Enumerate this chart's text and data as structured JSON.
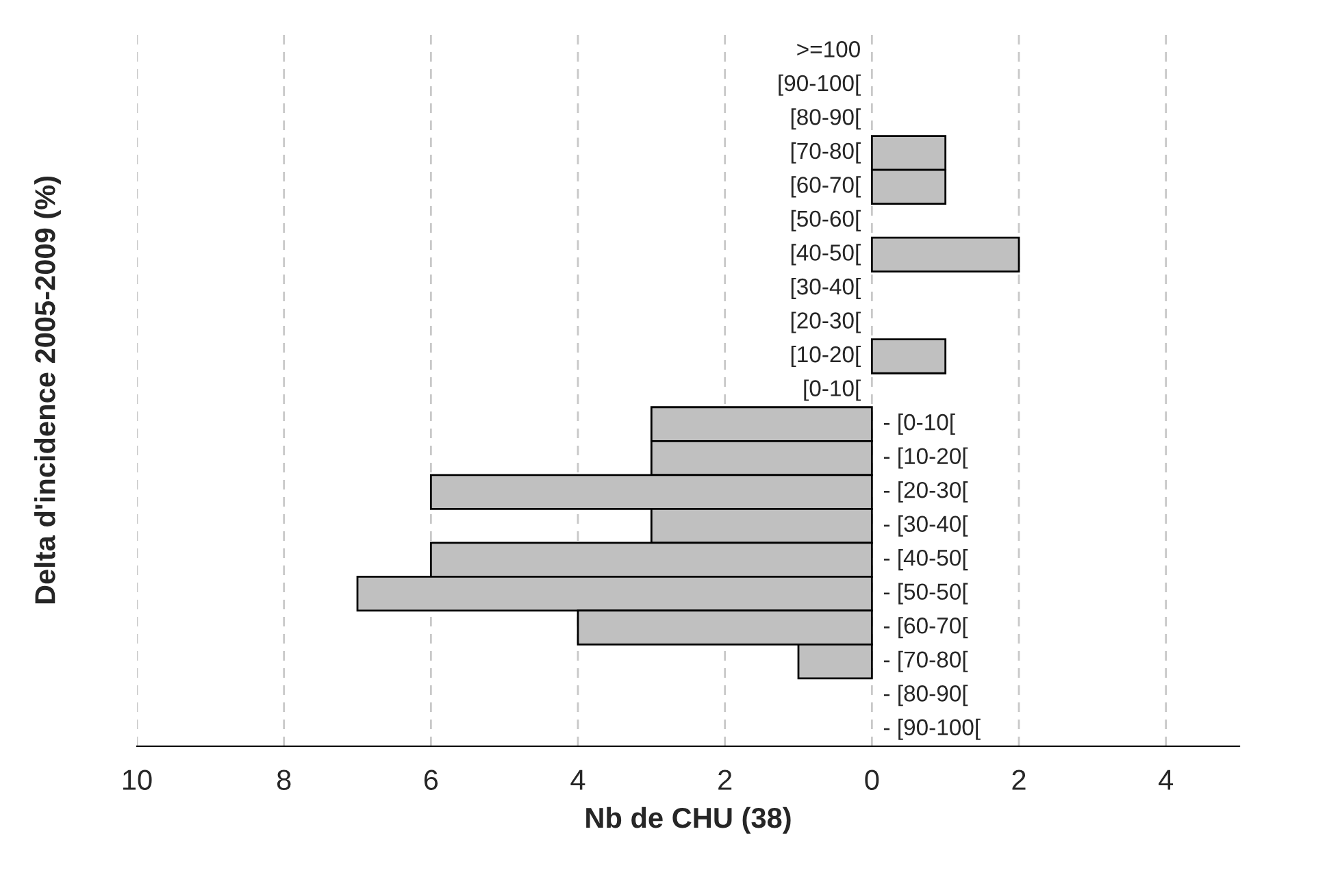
{
  "chart_data": {
    "type": "bar",
    "orientation": "horizontal",
    "xlabel": "Nb de CHU (38)",
    "ylabel": "Delta d'incidence 2005-2009 (%)",
    "categories": [
      ">=100",
      "[90-100[",
      "[80-90[",
      "[70-80[",
      "[60-70[",
      "[50-60[",
      "[40-50[",
      "[30-40[",
      "[20-30[",
      "[10-20[",
      "[0-10[",
      "- [0-10[",
      "- [10-20[",
      "- [20-30[",
      "- [30-40[",
      "- [40-50[",
      "- [50-50[",
      "- [60-70[",
      "- [70-80[",
      "- [80-90[",
      "- [90-100["
    ],
    "values": [
      0,
      0,
      0,
      1,
      1,
      0,
      2,
      0,
      0,
      1,
      0,
      -3,
      -3,
      -6,
      -3,
      -6,
      -7,
      -4,
      -1,
      0,
      0
    ],
    "color": "#c0c0c0",
    "xlim": [
      -10,
      5
    ],
    "xticks": [
      {
        "value": -10,
        "label": "10"
      },
      {
        "value": -8,
        "label": "8"
      },
      {
        "value": -6,
        "label": "6"
      },
      {
        "value": -4,
        "label": "4"
      },
      {
        "value": -2,
        "label": "2"
      },
      0,
      2,
      4
    ],
    "grid": "x"
  }
}
